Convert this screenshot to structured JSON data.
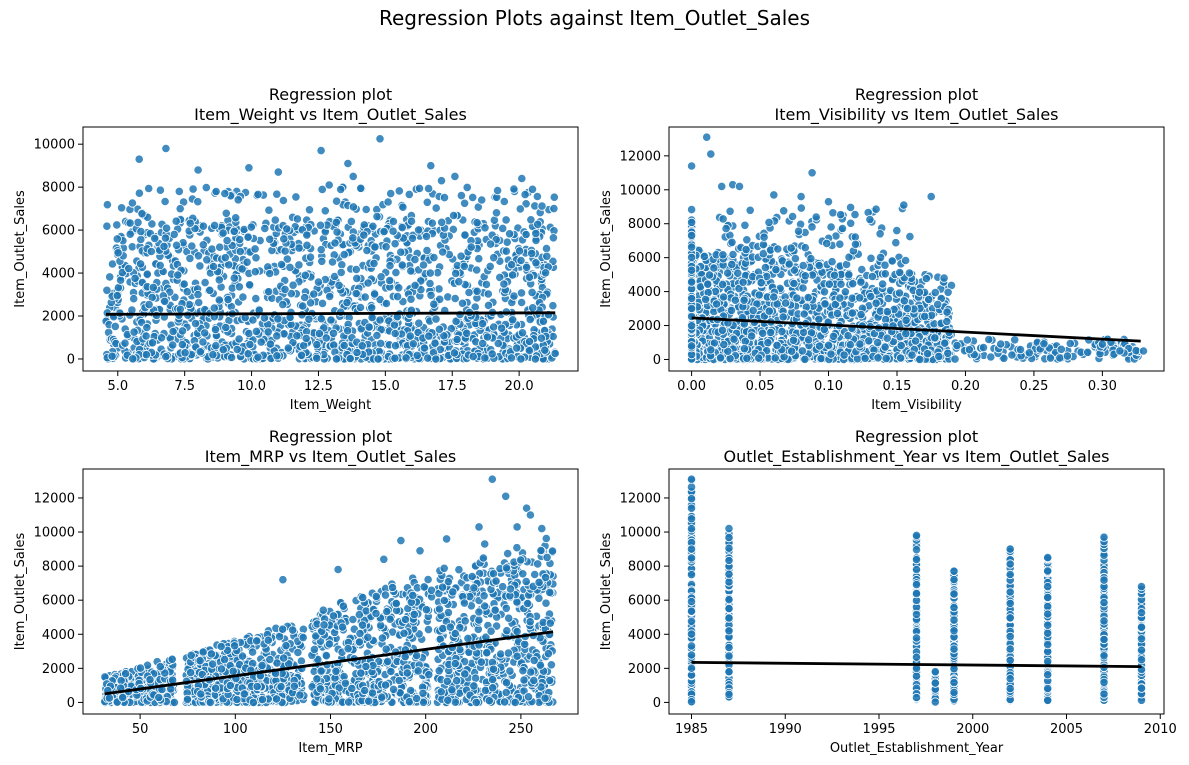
{
  "figure_title": "Regression Plots against Item_Outlet_Sales",
  "colors": {
    "points": "#1f77b4",
    "point_edge": "#ffffff",
    "regression_line": "#000000",
    "axes": "#000000"
  },
  "chart_data": [
    {
      "type": "scatter",
      "title": [
        "Regression plot",
        "Item_Weight vs Item_Outlet_Sales"
      ],
      "xlabel": "Item_Weight",
      "ylabel": "Item_Outlet_Sales",
      "xlim": [
        3.7,
        22.2
      ],
      "ylim": [
        -560,
        10800
      ],
      "xticks": [
        5.0,
        7.5,
        10.0,
        12.5,
        15.0,
        17.5,
        20.0
      ],
      "xtick_labels": [
        "5.0",
        "7.5",
        "10.0",
        "12.5",
        "15.0",
        "17.5",
        "20.0"
      ],
      "yticks": [
        0,
        2000,
        4000,
        6000,
        8000,
        10000
      ],
      "ytick_labels": [
        "0",
        "2000",
        "4000",
        "6000",
        "8000",
        "10000"
      ],
      "grid": false,
      "regression_line": {
        "x": [
          4.56,
          21.35
        ],
        "y": [
          2080,
          2150
        ]
      },
      "points_outline": {
        "x_range": [
          4.56,
          21.35
        ],
        "dense_y_max": 6500,
        "sparse_y_max": 8000
      },
      "outliers": [
        {
          "x": 5.8,
          "y": 9300
        },
        {
          "x": 6.8,
          "y": 9800
        },
        {
          "x": 8.0,
          "y": 8800
        },
        {
          "x": 9.9,
          "y": 8900
        },
        {
          "x": 11.0,
          "y": 8700
        },
        {
          "x": 12.6,
          "y": 9700
        },
        {
          "x": 12.9,
          "y": 8100
        },
        {
          "x": 13.6,
          "y": 9100
        },
        {
          "x": 13.8,
          "y": 8500
        },
        {
          "x": 14.8,
          "y": 10250
        },
        {
          "x": 16.7,
          "y": 9000
        },
        {
          "x": 17.1,
          "y": 8300
        },
        {
          "x": 17.6,
          "y": 8500
        },
        {
          "x": 20.1,
          "y": 8400
        },
        {
          "x": 20.5,
          "y": 7900
        },
        {
          "x": 7.3,
          "y": 7800
        },
        {
          "x": 9.0,
          "y": 7700
        },
        {
          "x": 15.2,
          "y": 7700
        },
        {
          "x": 18.6,
          "y": 7400
        },
        {
          "x": 21.3,
          "y": 7000
        }
      ]
    },
    {
      "type": "scatter",
      "title": [
        "Regression plot",
        "Item_Visibility vs Item_Outlet_Sales"
      ],
      "xlabel": "Item_Visibility",
      "ylabel": "Item_Outlet_Sales",
      "xlim": [
        -0.0165,
        0.345
      ],
      "ylim": [
        -680,
        13700
      ],
      "xticks": [
        0.0,
        0.05,
        0.1,
        0.15,
        0.2,
        0.25,
        0.3
      ],
      "xtick_labels": [
        "0.00",
        "0.05",
        "0.10",
        "0.15",
        "0.20",
        "0.25",
        "0.30"
      ],
      "yticks": [
        0,
        2000,
        4000,
        6000,
        8000,
        10000,
        12000
      ],
      "ytick_labels": [
        "0",
        "2000",
        "4000",
        "6000",
        "8000",
        "10000",
        "12000"
      ],
      "grid": false,
      "regression_line": {
        "x": [
          0.0,
          0.328
        ],
        "y": [
          2450,
          1080
        ]
      },
      "points_outline": {
        "x_range": [
          0.0,
          0.328
        ],
        "dense_x_max": 0.19,
        "dense_y_max": 6500,
        "tail_y_max": 1200
      },
      "outliers": [
        {
          "x": 0.011,
          "y": 13100
        },
        {
          "x": 0.014,
          "y": 12100
        },
        {
          "x": 0.0,
          "y": 11400
        },
        {
          "x": 0.022,
          "y": 10200
        },
        {
          "x": 0.03,
          "y": 10300
        },
        {
          "x": 0.035,
          "y": 10200
        },
        {
          "x": 0.088,
          "y": 11000
        },
        {
          "x": 0.06,
          "y": 9700
        },
        {
          "x": 0.08,
          "y": 9600
        },
        {
          "x": 0.175,
          "y": 9600
        },
        {
          "x": 0.155,
          "y": 9100
        },
        {
          "x": 0.1,
          "y": 9300
        },
        {
          "x": 0.33,
          "y": 500
        },
        {
          "x": 0.3,
          "y": 900
        },
        {
          "x": 0.27,
          "y": 600
        }
      ]
    },
    {
      "type": "scatter",
      "title": [
        "Regression plot",
        "Item_MRP vs Item_Outlet_Sales"
      ],
      "xlabel": "Item_MRP",
      "ylabel": "Item_Outlet_Sales",
      "xlim": [
        20,
        280
      ],
      "ylim": [
        -680,
        13700
      ],
      "xticks": [
        50,
        100,
        150,
        200,
        250
      ],
      "xtick_labels": [
        "50",
        "100",
        "150",
        "200",
        "250"
      ],
      "yticks": [
        0,
        2000,
        4000,
        6000,
        8000,
        10000,
        12000
      ],
      "ytick_labels": [
        "0",
        "2000",
        "4000",
        "6000",
        "8000",
        "10000",
        "12000"
      ],
      "grid": false,
      "regression_line": {
        "x": [
          31.3,
          266.9
        ],
        "y": [
          500,
          4150
        ]
      },
      "points_outline": {
        "x_range": [
          31.3,
          266.9
        ],
        "gaps": [
          [
            68,
            74
          ],
          [
            136,
            140
          ],
          [
            202,
            206
          ]
        ]
      },
      "outliers": [
        {
          "x": 235,
          "y": 13100
        },
        {
          "x": 242,
          "y": 12100
        },
        {
          "x": 253,
          "y": 11400
        },
        {
          "x": 255,
          "y": 11000
        },
        {
          "x": 248,
          "y": 10300
        },
        {
          "x": 228,
          "y": 10300
        },
        {
          "x": 261,
          "y": 10200
        },
        {
          "x": 231,
          "y": 9300
        },
        {
          "x": 211,
          "y": 9600
        },
        {
          "x": 187,
          "y": 9500
        },
        {
          "x": 197,
          "y": 8900
        },
        {
          "x": 125,
          "y": 7200
        },
        {
          "x": 154,
          "y": 7800
        },
        {
          "x": 178,
          "y": 8400
        }
      ]
    },
    {
      "type": "scatter",
      "title": [
        "Regression plot",
        "Outlet_Establishment_Year vs Item_Outlet_Sales"
      ],
      "xlabel": "Outlet_Establishment_Year",
      "ylabel": "Item_Outlet_Sales",
      "xlim": [
        1983.8,
        2010.2
      ],
      "ylim": [
        -680,
        13700
      ],
      "xticks": [
        1985,
        1990,
        1995,
        2000,
        2005,
        2010
      ],
      "xtick_labels": [
        "1985",
        "1990",
        "1995",
        "2000",
        "2005",
        "2010"
      ],
      "yticks": [
        0,
        2000,
        4000,
        6000,
        8000,
        10000,
        12000
      ],
      "ytick_labels": [
        "0",
        "2000",
        "4000",
        "6000",
        "8000",
        "10000",
        "12000"
      ],
      "grid": false,
      "regression_line": {
        "x": [
          1985,
          2009
        ],
        "y": [
          2350,
          2100
        ]
      },
      "columns": [
        {
          "x": 1985,
          "min": 0,
          "max": 13100
        },
        {
          "x": 1987,
          "min": 300,
          "max": 10200
        },
        {
          "x": 1997,
          "min": 100,
          "max": 9800
        },
        {
          "x": 1998,
          "min": 0,
          "max": 1800
        },
        {
          "x": 1999,
          "min": 100,
          "max": 7700
        },
        {
          "x": 2002,
          "min": 100,
          "max": 9000
        },
        {
          "x": 2004,
          "min": 100,
          "max": 8500
        },
        {
          "x": 2007,
          "min": 100,
          "max": 9700
        },
        {
          "x": 2009,
          "min": 100,
          "max": 6800
        }
      ]
    }
  ]
}
